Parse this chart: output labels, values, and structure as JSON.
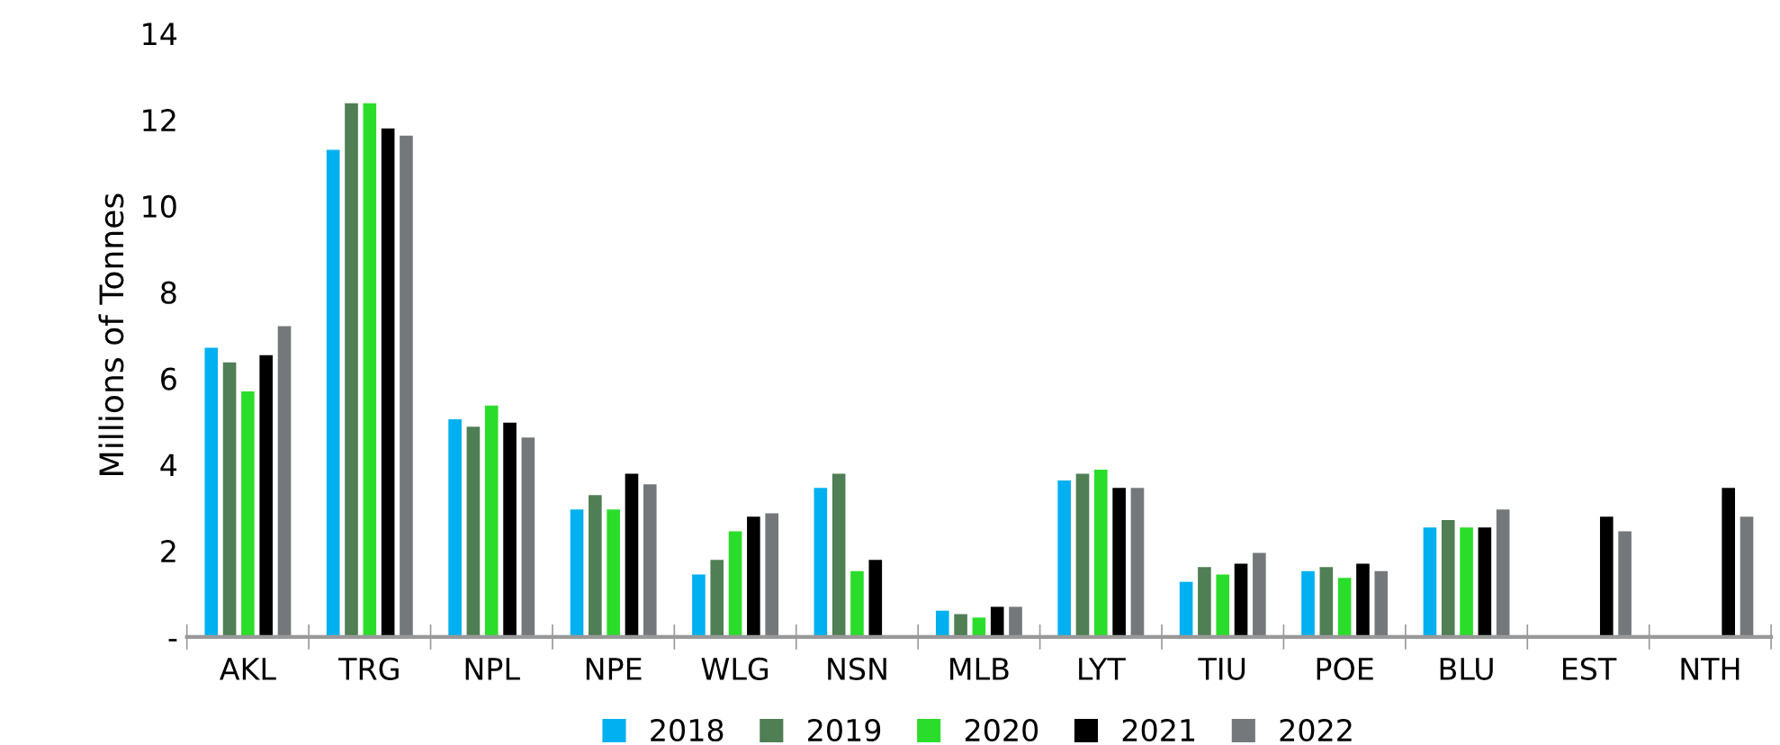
{
  "chart_data": {
    "type": "bar",
    "ylabel": "Millions of Tonnes",
    "categories": [
      "AKL",
      "TRG",
      "NPL",
      "NPE",
      "WLG",
      "NSN",
      "MLB",
      "LYT",
      "TIU",
      "POE",
      "BLU",
      "EST",
      "NTH"
    ],
    "series": [
      {
        "name": "2018",
        "color": "#00b0f0",
        "values": [
          6.71,
          11.3,
          5.05,
          2.96,
          1.45,
          3.46,
          0.61,
          3.63,
          1.28,
          1.53,
          2.54,
          null,
          null
        ]
      },
      {
        "name": "2019",
        "color": "#507e55",
        "values": [
          6.37,
          12.38,
          4.88,
          3.29,
          1.79,
          3.79,
          0.53,
          3.79,
          1.62,
          1.62,
          2.71,
          null,
          null
        ]
      },
      {
        "name": "2020",
        "color": "#2bdd2b",
        "values": [
          5.7,
          12.38,
          5.37,
          2.96,
          2.45,
          1.53,
          0.45,
          3.88,
          1.45,
          1.37,
          2.54,
          null,
          null
        ]
      },
      {
        "name": "2021",
        "color": "#000000",
        "values": [
          6.54,
          11.8,
          4.97,
          3.79,
          2.79,
          1.79,
          0.7,
          3.46,
          1.7,
          1.7,
          2.54,
          2.79,
          3.46
        ]
      },
      {
        "name": "2022",
        "color": "#75787b",
        "values": [
          7.21,
          11.63,
          4.63,
          3.54,
          2.87,
          null,
          0.7,
          3.46,
          1.95,
          1.53,
          2.96,
          2.45,
          2.79
        ]
      }
    ],
    "ylim": [
      0,
      14
    ],
    "yticks": [
      {
        "value": 0,
        "label": "-"
      },
      2,
      4,
      6,
      8,
      10,
      12,
      14
    ],
    "grid": false,
    "legend": "bottom"
  }
}
